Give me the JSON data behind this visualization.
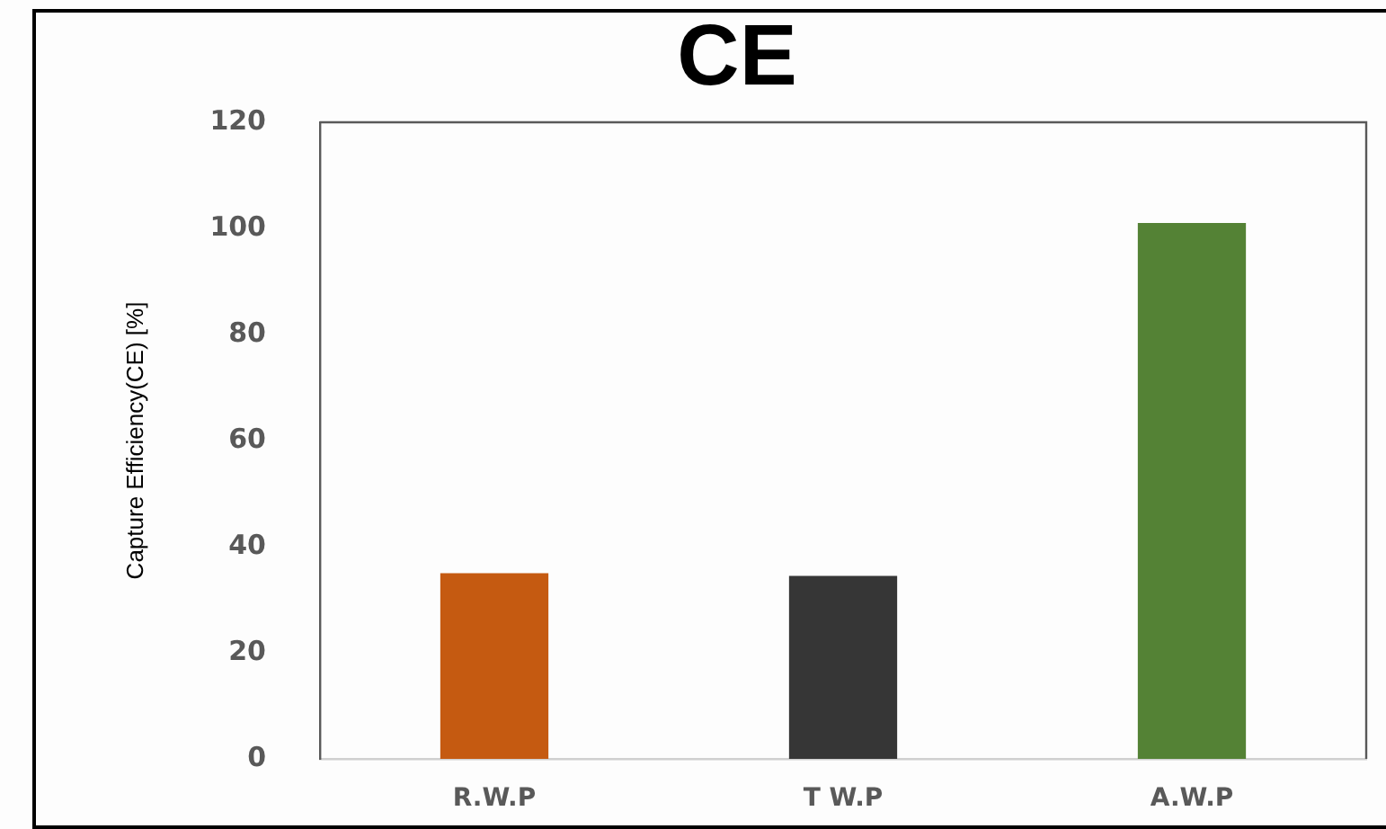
{
  "chart_data": {
    "type": "bar",
    "title": "CE",
    "ylabel": "Capture Efficiency(CE) [%]",
    "categories": [
      "R.W.P",
      "T W.P",
      "A.W.P"
    ],
    "values": [
      35,
      34.5,
      101
    ],
    "colors": [
      "#c55a11",
      "#363636",
      "#548235"
    ],
    "ylim": [
      0,
      120
    ],
    "yticks": [
      0,
      20,
      40,
      60,
      80,
      100,
      120
    ],
    "grid": false
  }
}
